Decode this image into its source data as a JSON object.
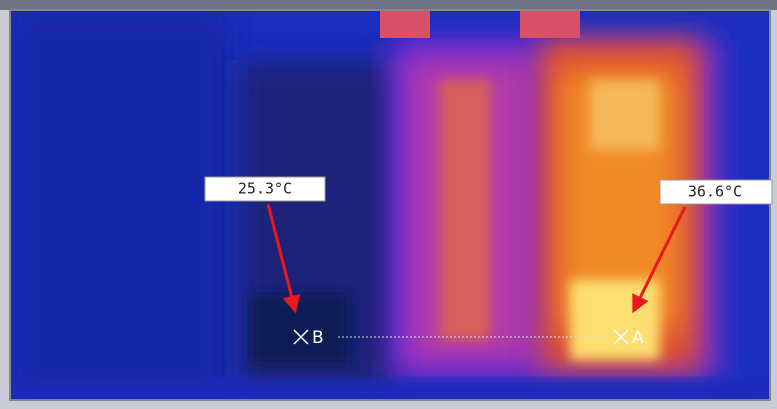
{
  "annotations": [
    {
      "label": "25.3°C",
      "marker": "B"
    },
    {
      "label": "36.6°C",
      "marker": "A"
    }
  ]
}
